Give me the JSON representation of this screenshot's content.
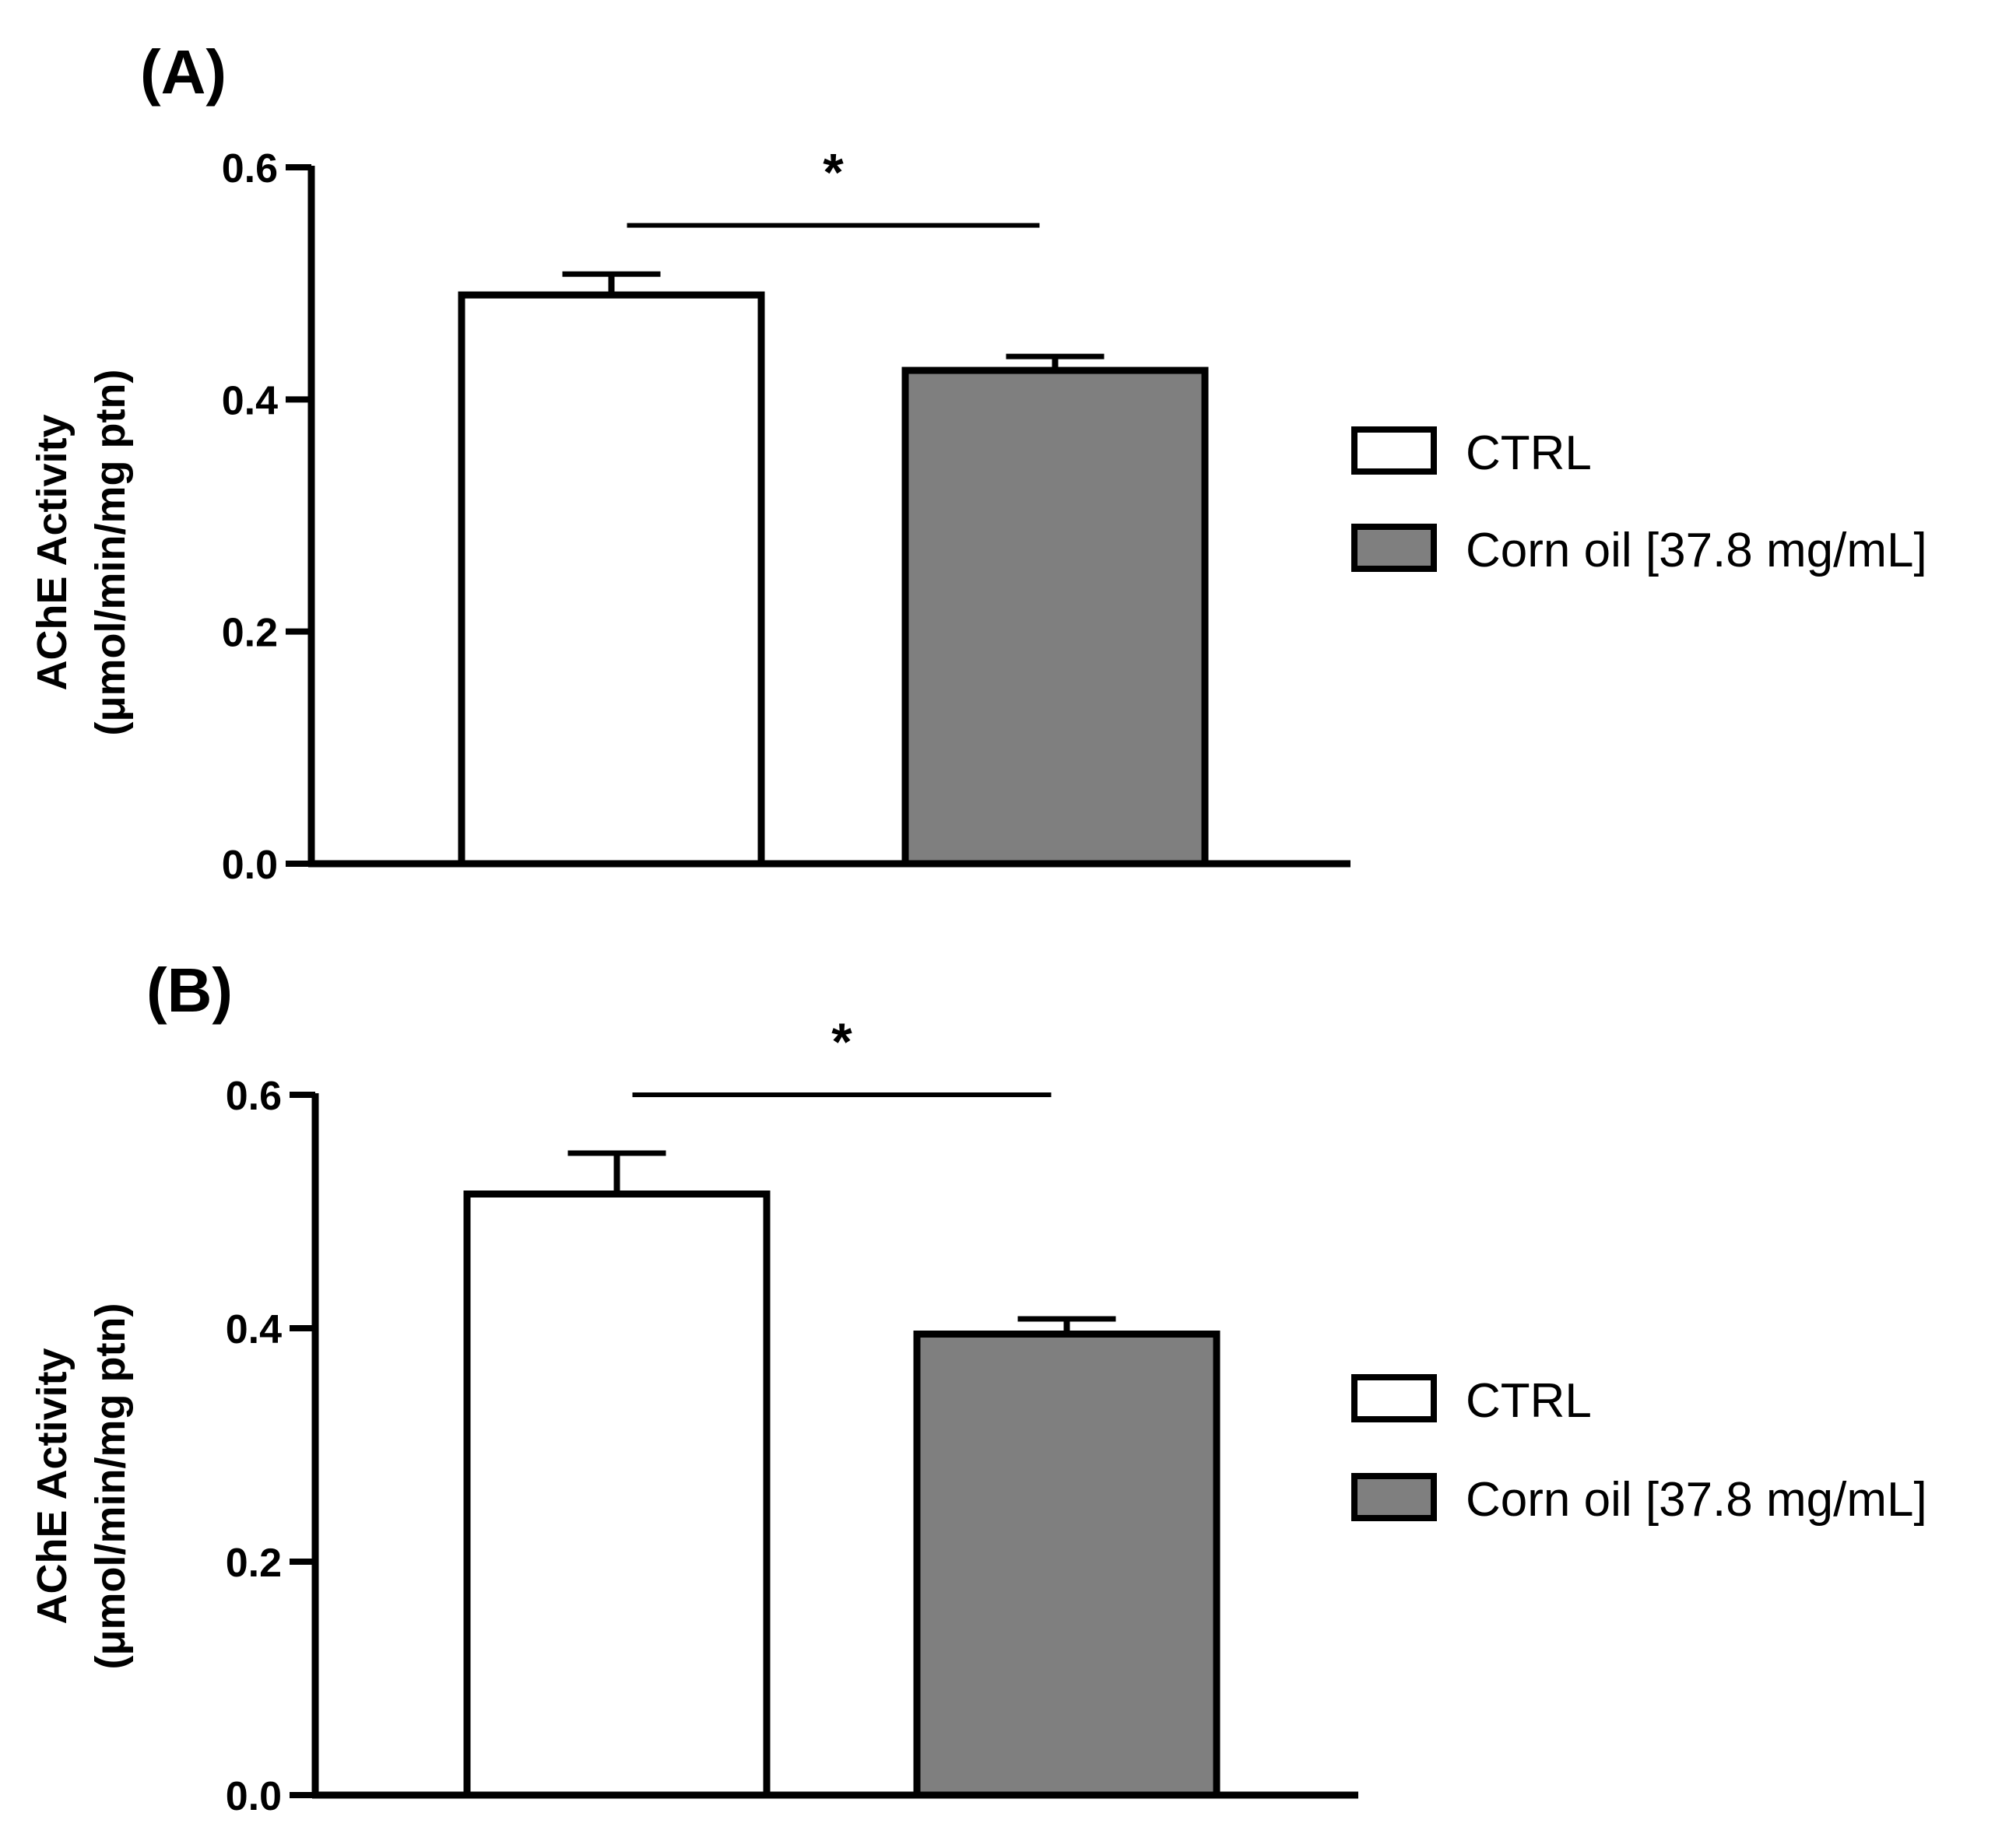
{
  "chart_data": [
    {
      "type": "bar",
      "panel_label": "(A)",
      "categories": [
        "CTRL",
        "Corn oil [37.8 mg/mL]"
      ],
      "values": [
        0.49,
        0.425
      ],
      "errors": [
        0.018,
        0.012
      ],
      "colors": [
        "#ffffff",
        "#7f7f7f"
      ],
      "ylabel_line1": "AChE Activity",
      "ylabel_line2": "(μmol/min/mg ptn)",
      "ylim": [
        0,
        0.6
      ],
      "yticks": [
        "0.0",
        "0.2",
        "0.4",
        "0.6"
      ],
      "yticks_values": [
        0,
        0.2,
        0.4,
        0.6
      ],
      "significance": {
        "text": "*",
        "from": 0,
        "to": 1,
        "level": 0.55
      },
      "legend": [
        {
          "label": "CTRL",
          "color": "#ffffff"
        },
        {
          "label": "Corn oil [37.8 mg/mL]",
          "color": "#7f7f7f"
        }
      ]
    },
    {
      "type": "bar",
      "panel_label": "(B)",
      "categories": [
        "CTRL",
        "Corn oil [37.8 mg/mL]"
      ],
      "values": [
        0.515,
        0.395
      ],
      "errors": [
        0.035,
        0.013
      ],
      "colors": [
        "#ffffff",
        "#7f7f7f"
      ],
      "ylabel_line1": "AChE Activity",
      "ylabel_line2": "(μmol/min/mg ptn)",
      "ylim": [
        0,
        0.6
      ],
      "yticks": [
        "0.0",
        "0.2",
        "0.4",
        "0.6"
      ],
      "yticks_values": [
        0,
        0.2,
        0.4,
        0.6
      ],
      "significance": {
        "text": "*",
        "from": 0,
        "to": 1,
        "level": 0.6
      },
      "legend": [
        {
          "label": "CTRL",
          "color": "#ffffff"
        },
        {
          "label": "Corn oil [37.8 mg/mL]",
          "color": "#7f7f7f"
        }
      ]
    }
  ]
}
